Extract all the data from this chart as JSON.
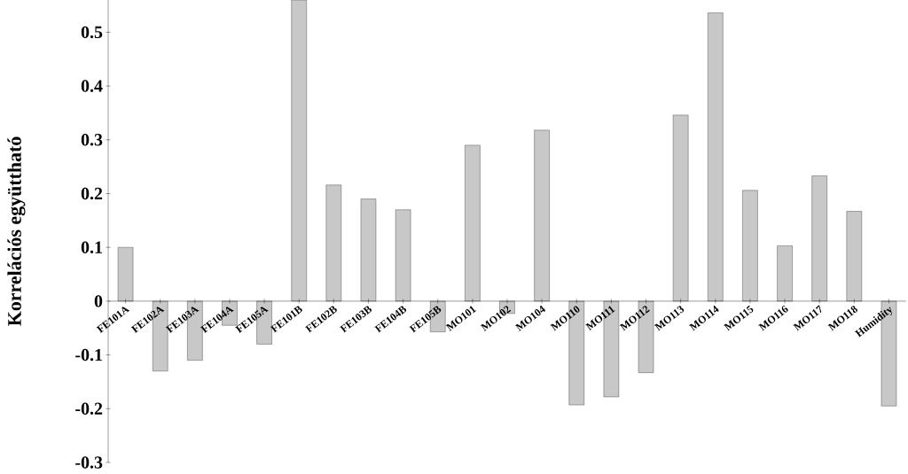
{
  "chart_data": {
    "type": "bar",
    "ylabel": "Korrelációs együttható",
    "categories": [
      "FE101A",
      "FE102A",
      "FE103A",
      "FE104A",
      "FE105A",
      "FE101B",
      "FE102B",
      "FE103B",
      "FE104B",
      "FE105B",
      "MO101",
      "MO102",
      "MO104",
      "MO110",
      "MO111",
      "MO112",
      "MO113",
      "MO114",
      "MO115",
      "MO116",
      "MO117",
      "MO118",
      "Humidity"
    ],
    "values": [
      0.1,
      -0.13,
      -0.11,
      -0.045,
      -0.08,
      0.56,
      0.216,
      0.19,
      0.17,
      -0.057,
      0.29,
      -0.023,
      0.318,
      -0.193,
      -0.178,
      -0.133,
      0.346,
      0.536,
      0.206,
      0.103,
      0.233,
      0.167,
      -0.195
    ],
    "color": "#c8c8c8",
    "ylim": [
      -0.3,
      0.56
    ],
    "yticks": [
      -0.3,
      -0.2,
      -0.1,
      0,
      0.1,
      0.2,
      0.3,
      0.4,
      0.5
    ]
  }
}
